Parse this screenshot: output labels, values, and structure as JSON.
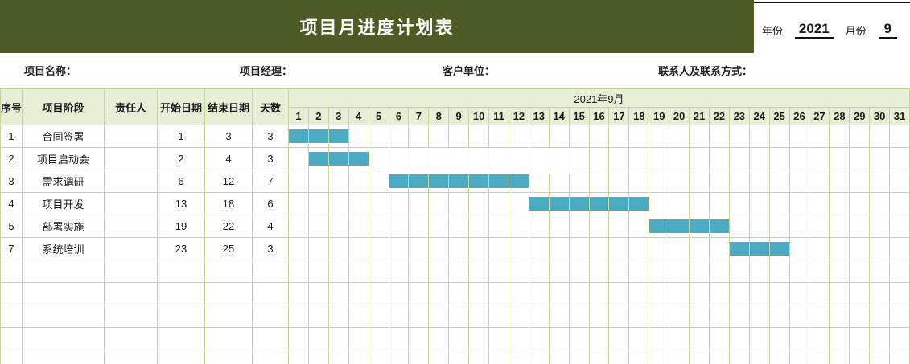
{
  "header": {
    "title": "项目月进度计划表",
    "year_label": "年份",
    "year_value": "2021",
    "month_label": "月份",
    "month_value": "9"
  },
  "info_bar": {
    "fields": [
      {
        "label": "项目名称：",
        "value": ""
      },
      {
        "label": "项目经理：",
        "value": ""
      },
      {
        "label": "客户单位：",
        "value": ""
      },
      {
        "label": "联系人及联系方式：",
        "value": ""
      }
    ]
  },
  "table": {
    "month_header": "2021年9月",
    "columns": [
      "序号",
      "项目阶段",
      "责任人",
      "开始日期",
      "结束日期",
      "天数"
    ],
    "days": [
      1,
      2,
      3,
      4,
      5,
      6,
      7,
      8,
      9,
      10,
      11,
      12,
      13,
      14,
      15,
      16,
      17,
      18,
      19,
      20,
      21,
      22,
      23,
      24,
      25,
      26,
      27,
      28,
      29,
      30,
      31
    ],
    "rows": [
      {
        "no": "1",
        "phase": "合同签署",
        "owner": "",
        "start": "1",
        "end": "3",
        "days": "3"
      },
      {
        "no": "2",
        "phase": "项目启动会",
        "owner": "",
        "start": "2",
        "end": "4",
        "days": "3"
      },
      {
        "no": "3",
        "phase": "需求调研",
        "owner": "",
        "start": "6",
        "end": "12",
        "days": "7"
      },
      {
        "no": "4",
        "phase": "项目开发",
        "owner": "",
        "start": "13",
        "end": "18",
        "days": "6"
      },
      {
        "no": "5",
        "phase": "部署实施",
        "owner": "",
        "start": "19",
        "end": "22",
        "days": "4"
      },
      {
        "no": "7",
        "phase": "系统培训",
        "owner": "",
        "start": "23",
        "end": "25",
        "days": "3"
      }
    ],
    "empty_row_count": 5
  },
  "colors": {
    "banner_bg": "#4d5b25",
    "table_header_bg": "#e7eed6",
    "grid_line": "#c3d69b",
    "bar_fill": "#4aabc2"
  }
}
